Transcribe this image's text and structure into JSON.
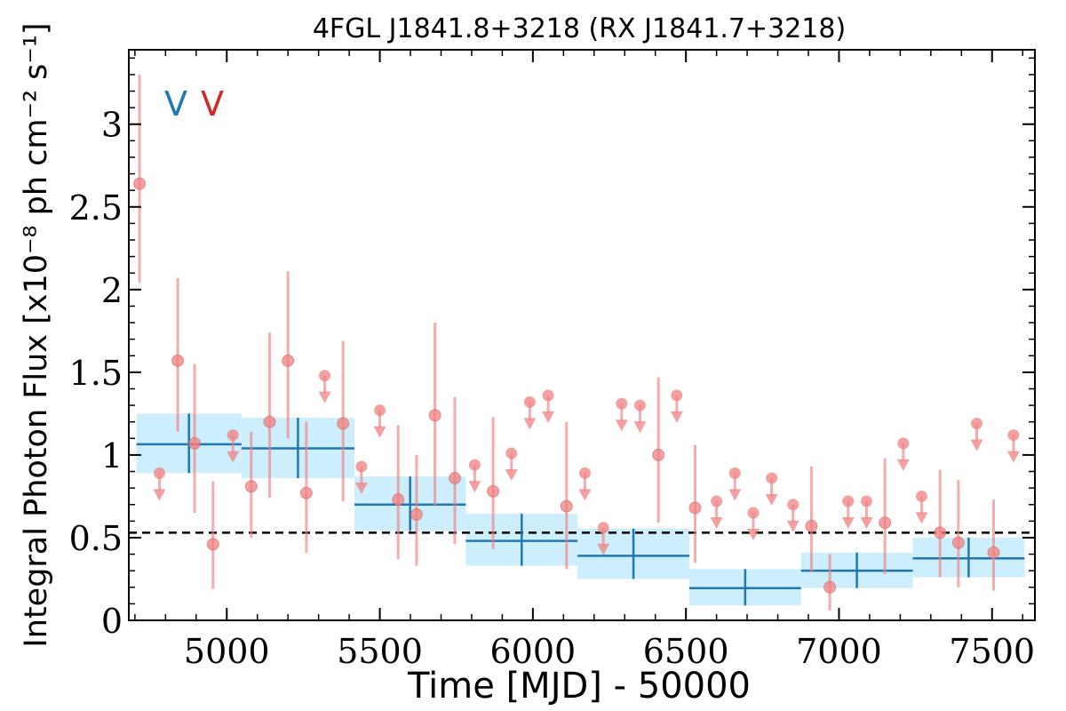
{
  "chart_data": {
    "type": "scatter",
    "title": "4FGL J1841.8+3218 (RX J1841.7+3218)",
    "xlabel": "Time [MJD] - 50000",
    "ylabel": "Integral Photon Flux [x10⁻⁸ ph cm⁻² s⁻¹]",
    "xlim": [
      4680,
      7640
    ],
    "ylim": [
      0,
      3.45
    ],
    "x_ticks": [
      5000,
      5500,
      6000,
      6500,
      7000,
      7500
    ],
    "x_tick_labels": [
      "5000",
      "5500",
      "6000",
      "6500",
      "7000",
      "7500"
    ],
    "y_ticks": [
      0,
      0.5,
      1,
      1.5,
      2,
      2.5,
      3
    ],
    "y_tick_labels": [
      "0",
      "0.5",
      "1",
      "1.5",
      "2",
      "2.5",
      "3"
    ],
    "legend_markers": [
      {
        "label": "V",
        "color": "#1f77b4"
      },
      {
        "label": "V",
        "color": "#d62728"
      }
    ],
    "reference_level": 0.53,
    "colors": {
      "short_bins": "#f08080",
      "long_bins": "#1f77b4",
      "long_band": "#cdeefc",
      "reference": "#000000"
    },
    "series": [
      {
        "kind": "detections",
        "points": [
          {
            "x": 4715,
            "y": 2.64,
            "lo": 2.04,
            "hi": 3.3
          },
          {
            "x": 4840,
            "y": 1.57,
            "lo": 1.14,
            "hi": 2.07
          },
          {
            "x": 4895,
            "y": 1.07,
            "lo": 0.65,
            "hi": 1.55
          },
          {
            "x": 4955,
            "y": 0.46,
            "lo": 0.19,
            "hi": 0.84
          },
          {
            "x": 5080,
            "y": 0.81,
            "lo": 0.5,
            "hi": 1.14
          },
          {
            "x": 5140,
            "y": 1.2,
            "lo": 0.74,
            "hi": 1.74
          },
          {
            "x": 5200,
            "y": 1.57,
            "lo": 1.1,
            "hi": 2.11
          },
          {
            "x": 5260,
            "y": 0.77,
            "lo": 0.41,
            "hi": 1.2
          },
          {
            "x": 5380,
            "y": 1.19,
            "lo": 0.72,
            "hi": 1.69
          },
          {
            "x": 5560,
            "y": 0.73,
            "lo": 0.37,
            "hi": 1.18
          },
          {
            "x": 5620,
            "y": 0.64,
            "lo": 0.33,
            "hi": 1.0
          },
          {
            "x": 5680,
            "y": 1.24,
            "lo": 0.69,
            "hi": 1.8
          },
          {
            "x": 5745,
            "y": 0.86,
            "lo": 0.46,
            "hi": 1.35
          },
          {
            "x": 5870,
            "y": 0.78,
            "lo": 0.43,
            "hi": 1.23
          },
          {
            "x": 6110,
            "y": 0.69,
            "lo": 0.31,
            "hi": 1.2
          },
          {
            "x": 6410,
            "y": 1.0,
            "lo": 0.59,
            "hi": 1.47
          },
          {
            "x": 6530,
            "y": 0.68,
            "lo": 0.35,
            "hi": 1.06
          },
          {
            "x": 6910,
            "y": 0.57,
            "lo": 0.29,
            "hi": 0.93
          },
          {
            "x": 6970,
            "y": 0.2,
            "lo": 0.06,
            "hi": 0.4
          },
          {
            "x": 7150,
            "y": 0.59,
            "lo": 0.28,
            "hi": 0.98
          },
          {
            "x": 7330,
            "y": 0.53,
            "lo": 0.26,
            "hi": 0.91
          },
          {
            "x": 7390,
            "y": 0.47,
            "lo": 0.2,
            "hi": 0.85
          },
          {
            "x": 7505,
            "y": 0.41,
            "lo": 0.18,
            "hi": 0.73
          }
        ]
      },
      {
        "kind": "upper_limits",
        "points": [
          {
            "x": 4780,
            "y": 0.89
          },
          {
            "x": 5020,
            "y": 1.12
          },
          {
            "x": 5320,
            "y": 1.48
          },
          {
            "x": 5440,
            "y": 0.93
          },
          {
            "x": 5500,
            "y": 1.27
          },
          {
            "x": 5810,
            "y": 0.94
          },
          {
            "x": 5930,
            "y": 1.01
          },
          {
            "x": 5990,
            "y": 1.32
          },
          {
            "x": 6050,
            "y": 1.36
          },
          {
            "x": 6170,
            "y": 0.89
          },
          {
            "x": 6230,
            "y": 0.56
          },
          {
            "x": 6290,
            "y": 1.31
          },
          {
            "x": 6350,
            "y": 1.3
          },
          {
            "x": 6470,
            "y": 1.36
          },
          {
            "x": 6600,
            "y": 0.72
          },
          {
            "x": 6660,
            "y": 0.89
          },
          {
            "x": 6720,
            "y": 0.65
          },
          {
            "x": 6780,
            "y": 0.86
          },
          {
            "x": 6850,
            "y": 0.7
          },
          {
            "x": 7030,
            "y": 0.72
          },
          {
            "x": 7090,
            "y": 0.72
          },
          {
            "x": 7210,
            "y": 1.07
          },
          {
            "x": 7270,
            "y": 0.75
          },
          {
            "x": 7450,
            "y": 1.19
          },
          {
            "x": 7570,
            "y": 1.12
          }
        ]
      },
      {
        "kind": "long_bins",
        "bins": [
          {
            "x0": 4705,
            "x1": 5048,
            "y": 1.065,
            "lo": 0.89,
            "hi": 1.25
          },
          {
            "x0": 5048,
            "x1": 5417,
            "y": 1.04,
            "lo": 0.86,
            "hi": 1.225
          },
          {
            "x0": 5417,
            "x1": 5781,
            "y": 0.7,
            "lo": 0.54,
            "hi": 0.87
          },
          {
            "x0": 5781,
            "x1": 6146,
            "y": 0.48,
            "lo": 0.33,
            "hi": 0.645
          },
          {
            "x0": 6146,
            "x1": 6511,
            "y": 0.39,
            "lo": 0.25,
            "hi": 0.555
          },
          {
            "x0": 6511,
            "x1": 6876,
            "y": 0.195,
            "lo": 0.09,
            "hi": 0.31
          },
          {
            "x0": 6876,
            "x1": 7241,
            "y": 0.3,
            "lo": 0.195,
            "hi": 0.41
          },
          {
            "x0": 7241,
            "x1": 7606,
            "y": 0.375,
            "lo": 0.26,
            "hi": 0.5
          }
        ]
      }
    ]
  }
}
